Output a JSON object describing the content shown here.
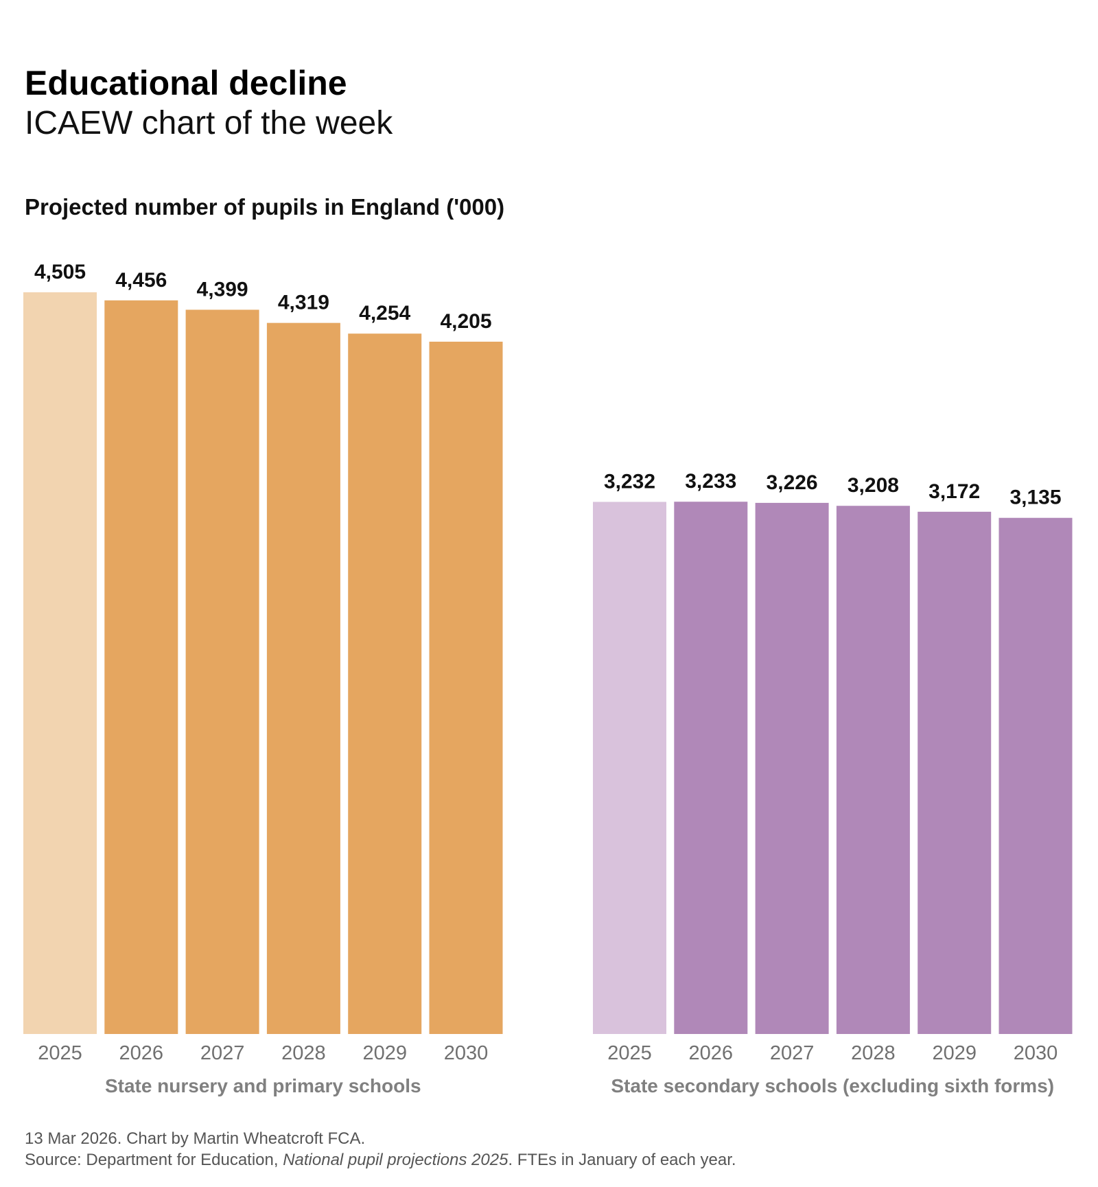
{
  "header": {
    "title": "Educational decline",
    "subtitle": "ICAEW chart of the week"
  },
  "footer": {
    "line1": "13 Mar 2026.   Chart by Martin Wheatcroft FCA.",
    "source_prefix": "Source: Department for Education, ",
    "source_italic": "National pupil projections 2025",
    "source_suffix": ". FTEs in January of each year."
  },
  "chart_data": {
    "type": "bar",
    "title": "Projected number of pupils in England ('000)",
    "ylim": [
      0,
      4505
    ],
    "grid": false,
    "categories": [
      "2025",
      "2026",
      "2027",
      "2028",
      "2029",
      "2030"
    ],
    "groups": [
      {
        "label": "State nursery and primary schools",
        "values": [
          4505,
          4456,
          4399,
          4319,
          4254,
          4205
        ],
        "value_labels": [
          "4,505",
          "4,456",
          "4,399",
          "4,319",
          "4,254",
          "4,205"
        ],
        "color": "#E5A660",
        "highlight_color": "#F2D4B0"
      },
      {
        "label": "State secondary schools (excluding sixth forms)",
        "values": [
          3232,
          3233,
          3226,
          3208,
          3172,
          3135
        ],
        "value_labels": [
          "3,232",
          "3,233",
          "3,226",
          "3,208",
          "3,172",
          "3,135"
        ],
        "color": "#B088B8",
        "highlight_color": "#D9C2DC"
      }
    ]
  }
}
